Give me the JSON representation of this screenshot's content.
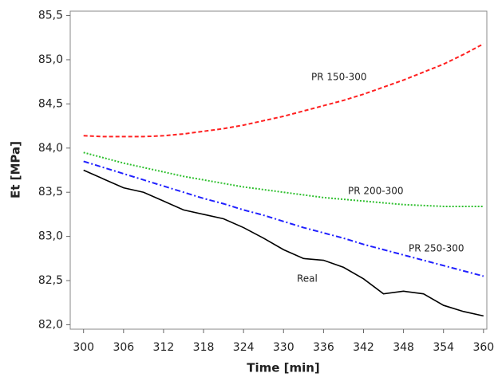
{
  "chart_data": {
    "type": "line",
    "x_label": "Time [min]",
    "y_label": "Et [MPa]",
    "x": [
      300,
      303,
      306,
      309,
      312,
      315,
      318,
      321,
      324,
      327,
      330,
      333,
      336,
      339,
      342,
      345,
      348,
      351,
      354,
      357,
      360
    ],
    "series": [
      {
        "name": "PR 150-300",
        "color": "#ff2020",
        "linestyle": "dashed",
        "values": [
          84.14,
          84.13,
          84.13,
          84.13,
          84.14,
          84.16,
          84.19,
          84.22,
          84.26,
          84.31,
          84.36,
          84.42,
          84.48,
          84.54,
          84.61,
          84.69,
          84.77,
          84.86,
          84.95,
          85.06,
          85.18
        ]
      },
      {
        "name": "PR 200-300",
        "color": "#30c030",
        "linestyle": "dotted",
        "values": [
          83.95,
          83.89,
          83.83,
          83.78,
          83.73,
          83.68,
          83.64,
          83.6,
          83.56,
          83.53,
          83.5,
          83.47,
          83.44,
          83.42,
          83.4,
          83.38,
          83.36,
          83.35,
          83.34,
          83.34,
          83.34
        ]
      },
      {
        "name": "PR 250-300",
        "color": "#2020ff",
        "linestyle": "dashdot",
        "values": [
          83.85,
          83.78,
          83.71,
          83.64,
          83.57,
          83.5,
          83.43,
          83.37,
          83.3,
          83.24,
          83.17,
          83.1,
          83.04,
          82.98,
          82.91,
          82.85,
          82.79,
          82.73,
          82.67,
          82.61,
          82.55
        ]
      },
      {
        "name": "Real",
        "color": "#000000",
        "linestyle": "solid",
        "values": [
          83.75,
          83.65,
          83.55,
          83.5,
          83.4,
          83.3,
          83.25,
          83.2,
          83.1,
          82.98,
          82.85,
          82.75,
          82.73,
          82.65,
          82.52,
          82.35,
          82.38,
          82.35,
          82.22,
          82.15,
          82.1
        ]
      }
    ],
    "xlim": [
      298,
      360.5
    ],
    "xticks": [
      300,
      306,
      312,
      318,
      324,
      330,
      336,
      342,
      348,
      354,
      360
    ],
    "ylim": [
      81.95,
      85.55
    ],
    "yticks": [
      {
        "value": 82.0,
        "label": "82,0"
      },
      {
        "value": 82.5,
        "label": "82,5"
      },
      {
        "value": 83.0,
        "label": "83,0"
      },
      {
        "value": 83.5,
        "label": "83,5"
      },
      {
        "value": 84.0,
        "label": "84,0"
      },
      {
        "value": 84.5,
        "label": "84,5"
      },
      {
        "value": 85.0,
        "label": "85,0"
      },
      {
        "value": 85.5,
        "label": "85,5"
      }
    ]
  }
}
